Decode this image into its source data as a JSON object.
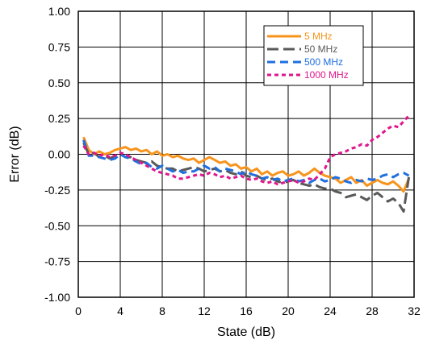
{
  "chart_data": {
    "type": "line",
    "title": "",
    "xlabel": "State (dB)",
    "ylabel": "Error (dB)",
    "xlim": [
      0,
      32
    ],
    "ylim": [
      -1.0,
      1.0
    ],
    "xticks": [
      0,
      4,
      8,
      12,
      16,
      20,
      24,
      28,
      32
    ],
    "xtick_labels": [
      "0",
      "4",
      "8",
      "12",
      "16",
      "20",
      "24",
      "28",
      "32"
    ],
    "yticks": [
      1.0,
      0.75,
      0.5,
      0.25,
      0.0,
      -0.25,
      -0.5,
      -0.75,
      -1.0
    ],
    "ytick_labels": [
      "1.00",
      "0.75",
      "0.50",
      "0.25",
      "0.00",
      "-0.25",
      "-0.50",
      "-0.75",
      "-1.00"
    ],
    "grid": true,
    "legend_position": "top-right",
    "series": [
      {
        "name": "5 MHz",
        "color": "#F7941D",
        "dash": "solid",
        "x": [
          0.5,
          1,
          1.5,
          2,
          2.5,
          3,
          3.5,
          4,
          4.5,
          5,
          5.5,
          6,
          6.5,
          7,
          7.5,
          8,
          8.5,
          9,
          9.5,
          10,
          10.5,
          11,
          11.5,
          12,
          12.5,
          13,
          13.5,
          14,
          14.5,
          15,
          15.5,
          16,
          16.5,
          17,
          17.5,
          18,
          18.5,
          19,
          19.5,
          20,
          20.5,
          21,
          21.5,
          22,
          22.5,
          23,
          23.5,
          24,
          24.5,
          25,
          25.5,
          26,
          26.5,
          27,
          27.5,
          28,
          28.5,
          29,
          29.5,
          30,
          30.5,
          31,
          31.5
        ],
        "y": [
          0.12,
          0.03,
          0.0,
          0.02,
          0.0,
          0.01,
          0.03,
          0.04,
          0.05,
          0.03,
          0.04,
          0.02,
          0.03,
          0.0,
          0.02,
          -0.01,
          0.0,
          -0.02,
          -0.01,
          -0.03,
          -0.04,
          -0.03,
          -0.06,
          -0.04,
          -0.02,
          -0.04,
          -0.06,
          -0.05,
          -0.08,
          -0.07,
          -0.1,
          -0.09,
          -0.12,
          -0.1,
          -0.14,
          -0.12,
          -0.15,
          -0.13,
          -0.12,
          -0.15,
          -0.14,
          -0.12,
          -0.15,
          -0.13,
          -0.1,
          -0.13,
          -0.15,
          -0.16,
          -0.17,
          -0.2,
          -0.18,
          -0.16,
          -0.2,
          -0.18,
          -0.22,
          -0.2,
          -0.18,
          -0.2,
          -0.21,
          -0.19,
          -0.22,
          -0.26,
          -0.17
        ]
      },
      {
        "name": "50 MHz",
        "color": "#595959",
        "dash": "long-dash",
        "x": [
          0.5,
          1,
          1.5,
          2,
          2.5,
          3,
          3.5,
          4,
          4.5,
          5,
          5.5,
          6,
          6.5,
          7,
          7.5,
          8,
          8.5,
          9,
          9.5,
          10,
          10.5,
          11,
          11.5,
          12,
          12.5,
          13,
          13.5,
          14,
          14.5,
          15,
          15.5,
          16,
          16.5,
          17,
          17.5,
          18,
          18.5,
          19,
          19.5,
          20,
          20.5,
          21,
          21.5,
          22,
          22.5,
          23,
          23.5,
          24,
          24.5,
          25,
          25.5,
          26,
          26.5,
          27,
          27.5,
          28,
          28.5,
          29,
          29.5,
          30,
          30.5,
          31,
          31.5
        ],
        "y": [
          0.08,
          0.0,
          0.01,
          -0.02,
          -0.01,
          -0.03,
          -0.01,
          0.0,
          -0.02,
          -0.02,
          -0.04,
          -0.05,
          -0.06,
          -0.05,
          -0.08,
          -0.09,
          -0.1,
          -0.1,
          -0.12,
          -0.11,
          -0.1,
          -0.09,
          -0.1,
          -0.12,
          -0.11,
          -0.1,
          -0.12,
          -0.11,
          -0.13,
          -0.14,
          -0.12,
          -0.15,
          -0.16,
          -0.15,
          -0.17,
          -0.18,
          -0.17,
          -0.19,
          -0.2,
          -0.19,
          -0.18,
          -0.2,
          -0.21,
          -0.22,
          -0.21,
          -0.23,
          -0.24,
          -0.24,
          -0.26,
          -0.27,
          -0.3,
          -0.29,
          -0.28,
          -0.3,
          -0.32,
          -0.29,
          -0.27,
          -0.3,
          -0.33,
          -0.31,
          -0.34,
          -0.4,
          -0.16
        ]
      },
      {
        "name": "500 MHz",
        "color": "#1F6FE0",
        "dash": "dash",
        "x": [
          0.5,
          1,
          1.5,
          2,
          2.5,
          3,
          3.5,
          4,
          4.5,
          5,
          5.5,
          6,
          6.5,
          7,
          7.5,
          8,
          8.5,
          9,
          9.5,
          10,
          10.5,
          11,
          11.5,
          12,
          12.5,
          13,
          13.5,
          14,
          14.5,
          15,
          15.5,
          16,
          16.5,
          17,
          17.5,
          18,
          18.5,
          19,
          19.5,
          20,
          20.5,
          21,
          21.5,
          22,
          22.5,
          23,
          23.5,
          24,
          24.5,
          25,
          25.5,
          26,
          26.5,
          27,
          27.5,
          28,
          28.5,
          29,
          29.5,
          30,
          30.5,
          31,
          31.5
        ],
        "y": [
          0.1,
          -0.01,
          -0.01,
          -0.02,
          -0.03,
          -0.04,
          -0.03,
          0.0,
          -0.02,
          -0.03,
          -0.05,
          -0.07,
          -0.06,
          -0.09,
          -0.1,
          -0.08,
          -0.1,
          -0.12,
          -0.11,
          -0.13,
          -0.12,
          -0.12,
          -0.1,
          -0.08,
          -0.1,
          -0.09,
          -0.12,
          -0.1,
          -0.11,
          -0.12,
          -0.14,
          -0.12,
          -0.14,
          -0.15,
          -0.17,
          -0.16,
          -0.18,
          -0.17,
          -0.19,
          -0.18,
          -0.17,
          -0.19,
          -0.18,
          -0.2,
          -0.18,
          -0.17,
          -0.19,
          -0.18,
          -0.16,
          -0.17,
          -0.19,
          -0.2,
          -0.18,
          -0.19,
          -0.17,
          -0.18,
          -0.17,
          -0.15,
          -0.14,
          -0.16,
          -0.14,
          -0.13,
          -0.15
        ]
      },
      {
        "name": "1000 MHz",
        "color": "#E0168C",
        "dash": "short-dash",
        "x": [
          0.5,
          1,
          1.5,
          2,
          2.5,
          3,
          3.5,
          4,
          4.5,
          5,
          5.5,
          6,
          6.5,
          7,
          7.5,
          8,
          8.5,
          9,
          9.5,
          10,
          10.5,
          11,
          11.5,
          12,
          12.5,
          13,
          13.5,
          14,
          14.5,
          15,
          15.5,
          16,
          16.5,
          17,
          17.5,
          18,
          18.5,
          19,
          19.5,
          20,
          20.5,
          21,
          21.5,
          22,
          22.5,
          23,
          23.5,
          24,
          24.5,
          25,
          25.5,
          26,
          26.5,
          27,
          27.5,
          28,
          28.5,
          29,
          29.5,
          30,
          30.5,
          31,
          31.5
        ],
        "y": [
          0.06,
          0.0,
          0.01,
          -0.01,
          0.0,
          -0.02,
          -0.01,
          0.01,
          0.0,
          -0.02,
          -0.04,
          -0.06,
          -0.08,
          -0.1,
          -0.12,
          -0.13,
          -0.14,
          -0.15,
          -0.17,
          -0.17,
          -0.16,
          -0.15,
          -0.14,
          -0.15,
          -0.13,
          -0.14,
          -0.16,
          -0.15,
          -0.17,
          -0.16,
          -0.15,
          -0.17,
          -0.18,
          -0.17,
          -0.19,
          -0.2,
          -0.19,
          -0.21,
          -0.2,
          -0.19,
          -0.18,
          -0.2,
          -0.19,
          -0.17,
          -0.18,
          -0.14,
          -0.1,
          -0.02,
          0.0,
          0.01,
          0.02,
          0.04,
          0.05,
          0.07,
          0.06,
          0.1,
          0.12,
          0.15,
          0.18,
          0.2,
          0.19,
          0.23,
          0.27
        ]
      }
    ]
  }
}
